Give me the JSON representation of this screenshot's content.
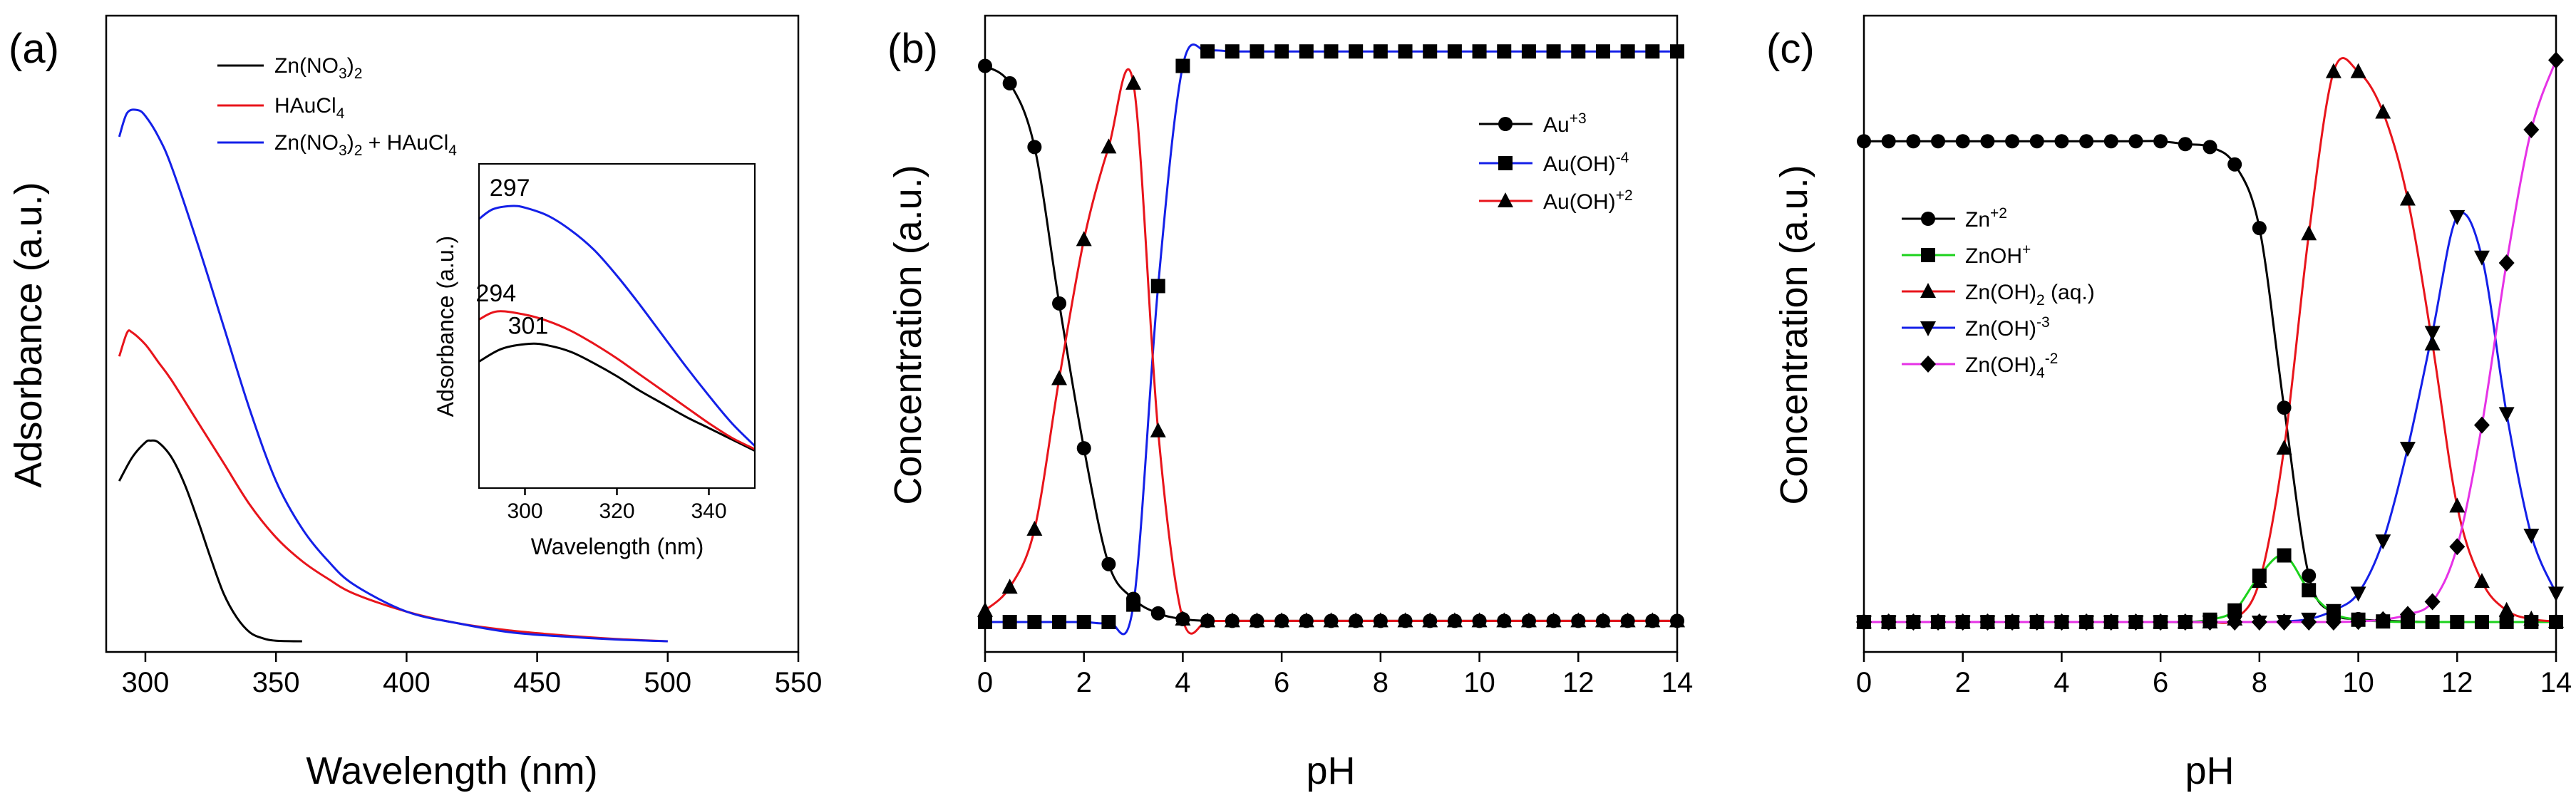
{
  "chart_data": [
    {
      "panel": "(a)",
      "type": "line",
      "xlabel": "Wavelength (nm)",
      "ylabel": "Adsorbance (a.u.)",
      "xlim": [
        285,
        550
      ],
      "ylim": [
        0,
        1.0
      ],
      "xticks": [
        300,
        350,
        400,
        450,
        500,
        550
      ],
      "yticks_shown": false,
      "legend_position": "top-center",
      "series": [
        {
          "name": "Zn(NO3)2",
          "color": "#000000",
          "x": [
            290,
            295,
            300,
            302,
            305,
            310,
            315,
            320,
            325,
            330,
            335,
            340,
            345,
            350,
            360
          ],
          "y": [
            0.27,
            0.31,
            0.335,
            0.338,
            0.335,
            0.31,
            0.265,
            0.205,
            0.14,
            0.08,
            0.04,
            0.015,
            0.005,
            0.001,
            0
          ]
        },
        {
          "name": "HAuCl4",
          "color": "#e8141b",
          "x": [
            290,
            293,
            295,
            300,
            305,
            310,
            320,
            330,
            340,
            350,
            360,
            370,
            380,
            400,
            420,
            440,
            460,
            480,
            500
          ],
          "y": [
            0.48,
            0.52,
            0.52,
            0.5,
            0.47,
            0.44,
            0.37,
            0.3,
            0.23,
            0.175,
            0.135,
            0.105,
            0.08,
            0.05,
            0.03,
            0.018,
            0.01,
            0.004,
            0
          ]
        },
        {
          "name": "Zn(NO3)2 + HAuCl4",
          "color": "#1420e8",
          "x": [
            290,
            293,
            297,
            300,
            305,
            310,
            320,
            330,
            340,
            350,
            360,
            370,
            380,
            400,
            420,
            440,
            460,
            480,
            500
          ],
          "y": [
            0.85,
            0.89,
            0.895,
            0.885,
            0.85,
            0.8,
            0.67,
            0.53,
            0.39,
            0.27,
            0.19,
            0.135,
            0.095,
            0.05,
            0.03,
            0.015,
            0.008,
            0.003,
            0
          ]
        }
      ],
      "inset": {
        "xlabel": "Wavelength (nm)",
        "ylabel": "Adsorbance (a.u.)",
        "xlim": [
          290,
          350
        ],
        "ylim": [
          0,
          1.0
        ],
        "xticks": [
          300,
          320,
          340
        ],
        "peak_labels": [
          "297",
          "294",
          "301"
        ],
        "peak_x": [
          297,
          294,
          301
        ],
        "series": [
          {
            "name": "Zn(NO3)2",
            "color": "#000000",
            "x": [
              290,
              295,
              301,
              305,
              310,
              315,
              320,
              325,
              330,
              335,
              340,
              345,
              350
            ],
            "y": [
              0.39,
              0.43,
              0.445,
              0.44,
              0.42,
              0.385,
              0.345,
              0.3,
              0.26,
              0.22,
              0.185,
              0.15,
              0.115
            ]
          },
          {
            "name": "HAuCl4",
            "color": "#e8141b",
            "x": [
              290,
              294,
              300,
              305,
              310,
              315,
              320,
              325,
              330,
              335,
              340,
              345,
              350
            ],
            "y": [
              0.52,
              0.545,
              0.535,
              0.515,
              0.485,
              0.445,
              0.4,
              0.35,
              0.3,
              0.25,
              0.2,
              0.155,
              0.12
            ]
          },
          {
            "name": "Zn(NO3)2 + HAuCl4",
            "color": "#1420e8",
            "x": [
              290,
              293,
              297,
              300,
              305,
              310,
              315,
              320,
              325,
              330,
              335,
              340,
              345,
              350
            ],
            "y": [
              0.83,
              0.86,
              0.87,
              0.865,
              0.84,
              0.795,
              0.735,
              0.655,
              0.565,
              0.47,
              0.375,
              0.285,
              0.2,
              0.13
            ]
          }
        ]
      }
    },
    {
      "panel": "(b)",
      "type": "line",
      "xlabel": "pH",
      "ylabel": "Concentration (a.u.)",
      "xlim": [
        0,
        14
      ],
      "ylim": [
        0,
        1.0
      ],
      "xticks": [
        0,
        2,
        4,
        6,
        8,
        10,
        12,
        14
      ],
      "yticks_shown": false,
      "legend_position": "top-right",
      "x": [
        0,
        0.5,
        1,
        1.5,
        2,
        2.5,
        3,
        3.5,
        4,
        4.5,
        5,
        5.5,
        6,
        6.5,
        7,
        7.5,
        8,
        8.5,
        9,
        9.5,
        10,
        10.5,
        11,
        11.5,
        12,
        12.5,
        13,
        13.5,
        14
      ],
      "series": [
        {
          "name": "Au+3",
          "marker": "circle",
          "color": "#000000",
          "values": [
            0.96,
            0.93,
            0.82,
            0.55,
            0.3,
            0.1,
            0.04,
            0.015,
            0.005,
            0.002,
            0.002,
            0.002,
            0.002,
            0.002,
            0.002,
            0.002,
            0.002,
            0.002,
            0.002,
            0.002,
            0.002,
            0.002,
            0.002,
            0.002,
            0.002,
            0.002,
            0.002,
            0.002,
            0.002
          ]
        },
        {
          "name": "Au(OH)-4",
          "marker": "square",
          "color": "#1420e8",
          "values": [
            0,
            0,
            0,
            0,
            0,
            0,
            0.03,
            0.58,
            0.96,
            0.985,
            0.985,
            0.985,
            0.985,
            0.985,
            0.985,
            0.985,
            0.985,
            0.985,
            0.985,
            0.985,
            0.985,
            0.985,
            0.985,
            0.985,
            0.985,
            0.985,
            0.985,
            0.985,
            0.985
          ]
        },
        {
          "name": "Au(OH)+2",
          "marker": "triangle",
          "color": "#e8141b",
          "values": [
            0.02,
            0.06,
            0.16,
            0.42,
            0.66,
            0.82,
            0.93,
            0.33,
            0.005,
            0.002,
            0.002,
            0.002,
            0.002,
            0.002,
            0.002,
            0.002,
            0.002,
            0.002,
            0.002,
            0.002,
            0.002,
            0.002,
            0.002,
            0.002,
            0.002,
            0.002,
            0.002,
            0.002,
            0.002
          ]
        }
      ]
    },
    {
      "panel": "(c)",
      "type": "line",
      "xlabel": "pH",
      "ylabel": "Concentration (a.u.)",
      "xlim": [
        0,
        14
      ],
      "ylim": [
        0,
        1.0
      ],
      "xticks": [
        0,
        2,
        4,
        6,
        8,
        10,
        12,
        14
      ],
      "yticks_shown": false,
      "legend_position": "middle-left",
      "x": [
        0,
        0.5,
        1,
        1.5,
        2,
        2.5,
        3,
        3.5,
        4,
        4.5,
        5,
        5.5,
        6,
        6.5,
        7,
        7.5,
        8,
        8.5,
        9,
        9.5,
        10,
        10.5,
        11,
        11.5,
        12,
        12.5,
        13,
        13.5,
        14
      ],
      "series": [
        {
          "name": "Zn+2",
          "marker": "circle",
          "color": "#000000",
          "values": [
            0.83,
            0.83,
            0.83,
            0.83,
            0.83,
            0.83,
            0.83,
            0.83,
            0.83,
            0.83,
            0.83,
            0.83,
            0.83,
            0.825,
            0.82,
            0.79,
            0.68,
            0.37,
            0.08,
            0.015,
            0.005,
            0.002,
            0.001,
            0,
            0,
            0,
            0,
            0,
            0
          ]
        },
        {
          "name": "ZnOH+",
          "marker": "square",
          "color": "#1cd21c",
          "values": [
            0,
            0,
            0,
            0,
            0,
            0,
            0,
            0,
            0,
            0,
            0,
            0,
            0,
            0,
            0.004,
            0.02,
            0.08,
            0.115,
            0.055,
            0.015,
            0.004,
            0.001,
            0,
            0,
            0,
            0,
            0,
            0,
            0
          ]
        },
        {
          "name": "Zn(OH)2 (aq.)",
          "marker": "triangle",
          "color": "#e8141b",
          "values": [
            0,
            0,
            0,
            0,
            0,
            0,
            0,
            0,
            0,
            0,
            0,
            0,
            0,
            0,
            0,
            0.005,
            0.07,
            0.3,
            0.67,
            0.95,
            0.95,
            0.88,
            0.73,
            0.48,
            0.2,
            0.07,
            0.02,
            0.005,
            0.001
          ]
        },
        {
          "name": "Zn(OH)-3",
          "marker": "triangle-down",
          "color": "#1420e8",
          "values": [
            0,
            0,
            0,
            0,
            0,
            0,
            0,
            0,
            0,
            0,
            0,
            0,
            0,
            0,
            0,
            0,
            0,
            0.001,
            0.005,
            0.02,
            0.05,
            0.14,
            0.3,
            0.5,
            0.7,
            0.63,
            0.36,
            0.15,
            0.05
          ]
        },
        {
          "name": "Zn(OH)4-2",
          "marker": "diamond",
          "color": "#e632e6",
          "values": [
            0,
            0,
            0,
            0,
            0,
            0,
            0,
            0,
            0,
            0,
            0,
            0,
            0,
            0,
            0,
            0,
            0,
            0,
            0,
            0,
            0.001,
            0.004,
            0.013,
            0.035,
            0.13,
            0.34,
            0.62,
            0.85,
            0.97
          ]
        }
      ]
    }
  ],
  "legend_labels": {
    "a": [
      "Zn(NO3)2",
      "HAuCl4",
      "Zn(NO3)2 + HAuCl4"
    ],
    "b": [
      "Au+3",
      "Au(OH)-4",
      "Au(OH)+2"
    ],
    "c": [
      "Zn+2",
      "ZnOH+",
      "Zn(OH)2 (aq.)",
      "Zn(OH)-3",
      "Zn(OH)4-2"
    ]
  }
}
